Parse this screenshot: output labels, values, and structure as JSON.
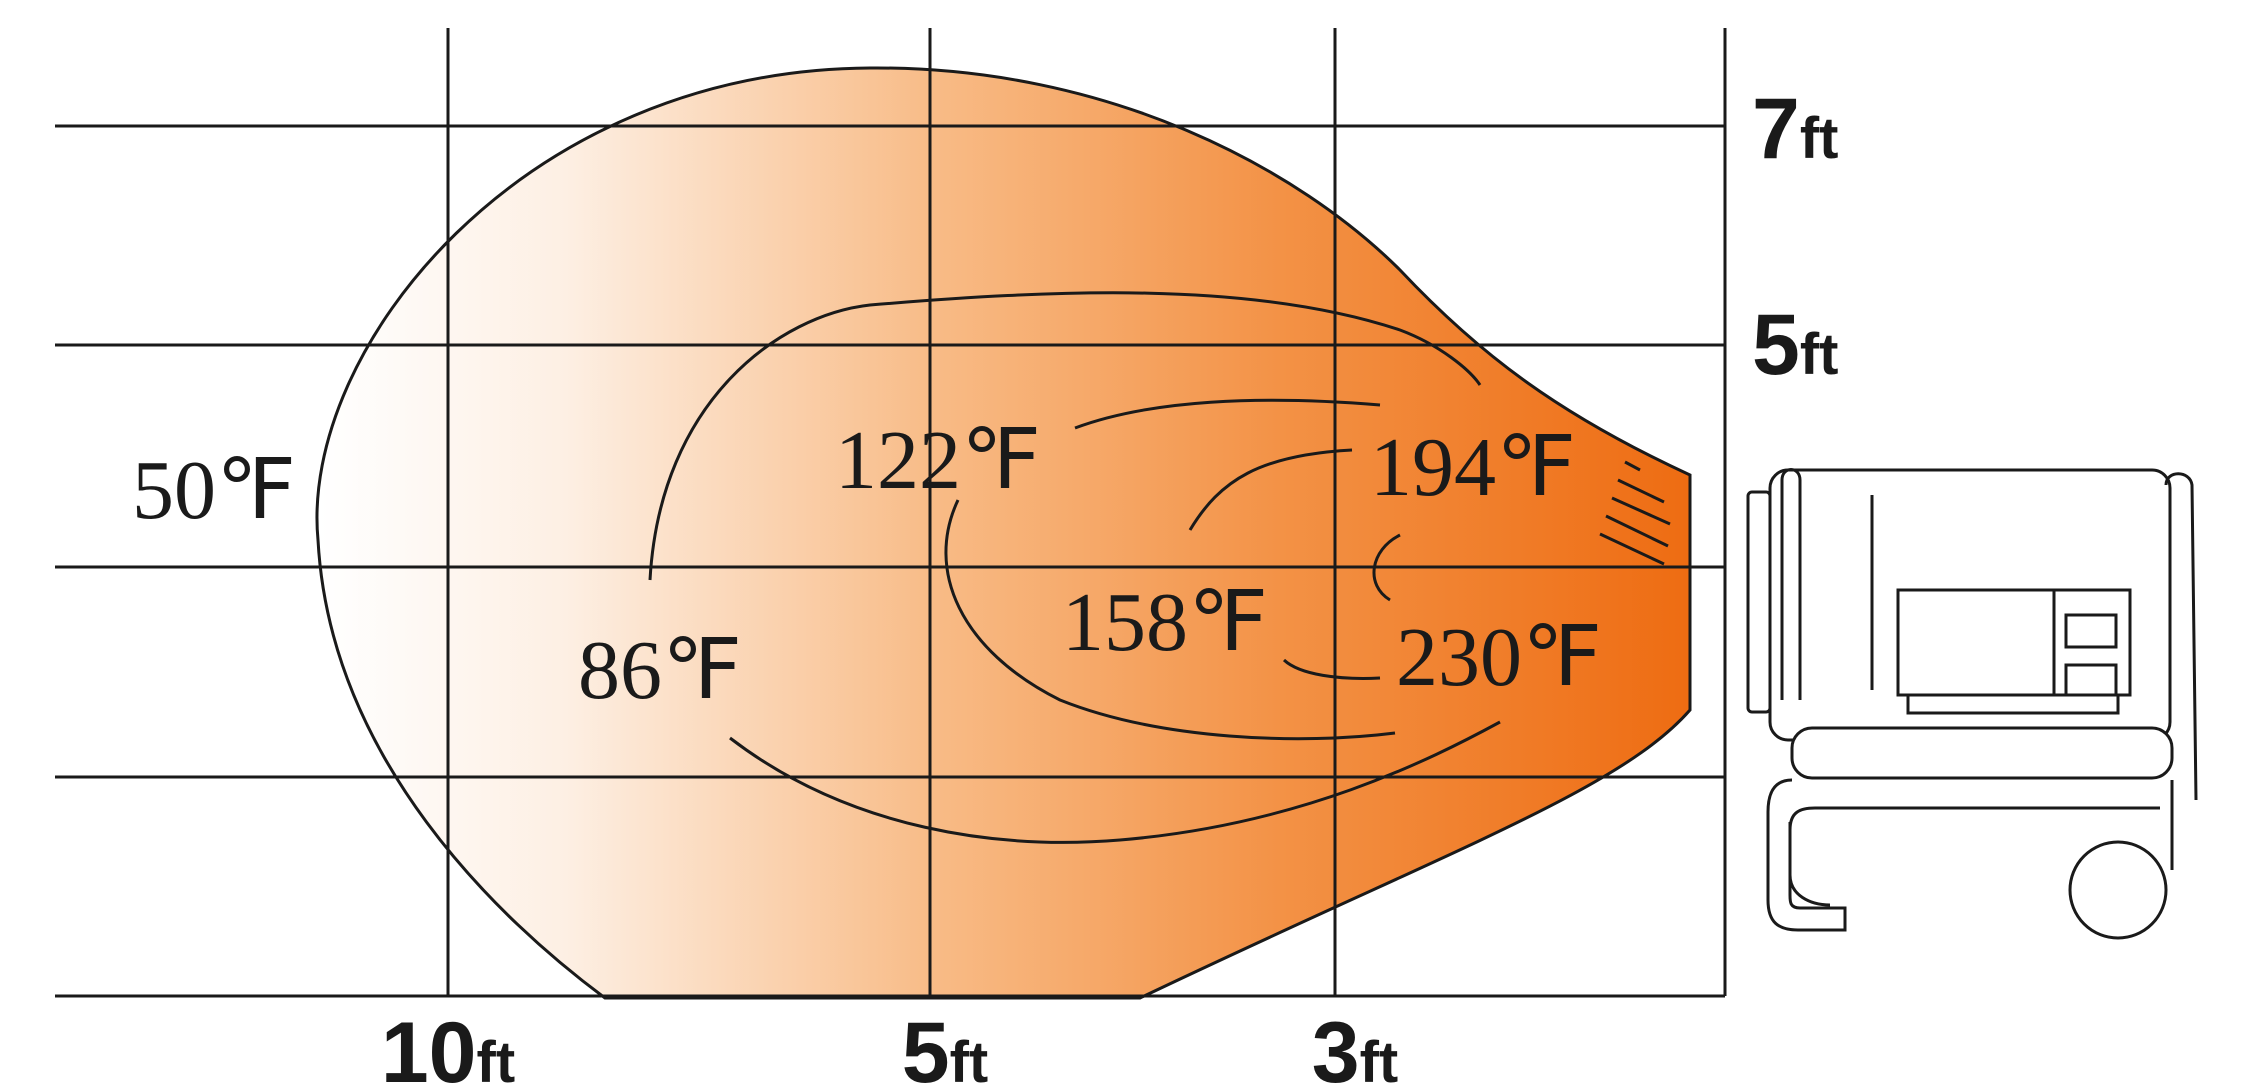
{
  "colors": {
    "heat_light": "#fdefe3",
    "heat_mid": "#f6a766",
    "heat_dark": "#ee6c12",
    "line": "#1a1a1a"
  },
  "axis_labels": {
    "x": [
      {
        "num": "10",
        "unit": "ft"
      },
      {
        "num": "5",
        "unit": "ft"
      },
      {
        "num": "3",
        "unit": "ft"
      }
    ],
    "y": [
      {
        "num": "7",
        "unit": "ft"
      },
      {
        "num": "5",
        "unit": "ft"
      }
    ]
  },
  "temperatures": [
    "50℉",
    "86℉",
    "122℉",
    "158℉",
    "194℉",
    "230℉"
  ],
  "icons": {
    "heater": "portable-heater-icon"
  }
}
